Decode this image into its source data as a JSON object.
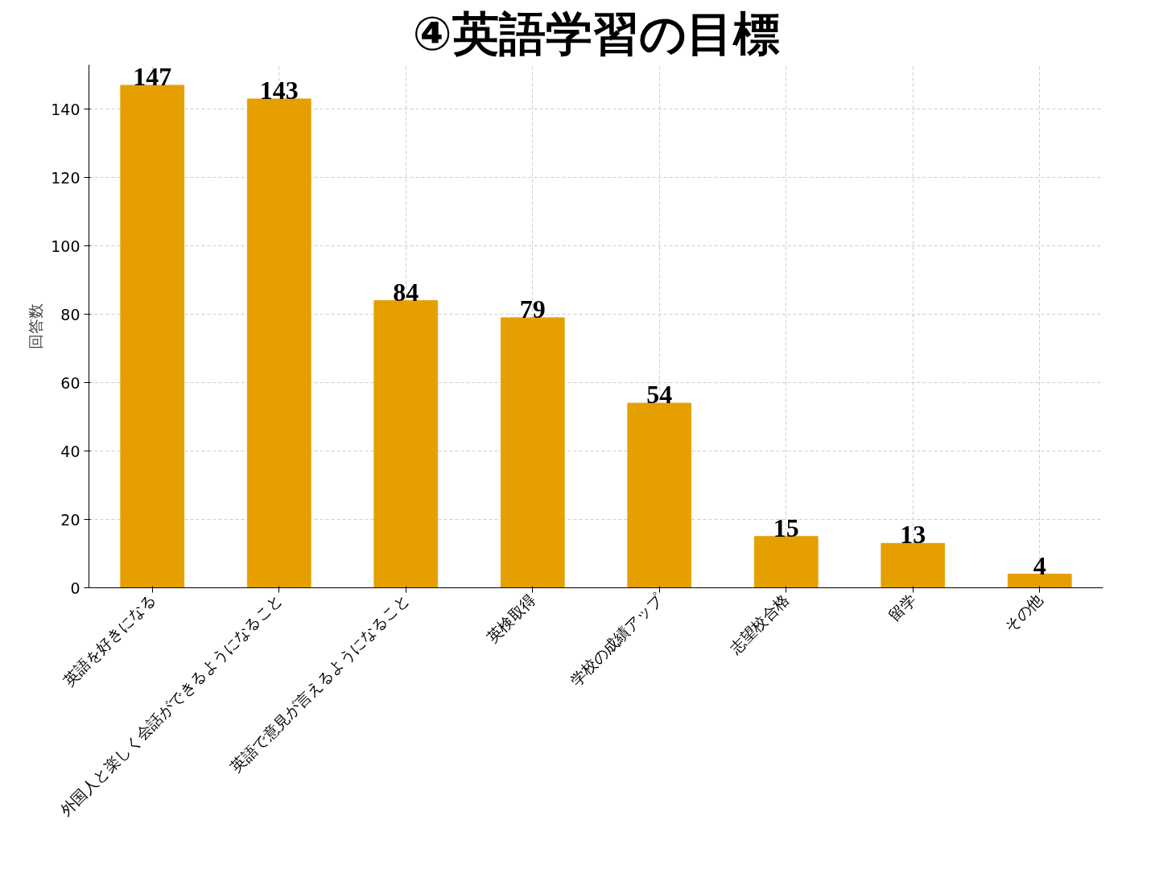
{
  "chart_data": {
    "type": "bar",
    "title": "④英語学習の目標",
    "ylabel": "回答数",
    "categories": [
      "英語を好きになる",
      "外国人と楽しく会話ができるようになること",
      "英語で意見が言えるようになること",
      "英検取得",
      "学校の成績アップ",
      "志望校合格",
      "留学",
      "その他"
    ],
    "values": [
      147,
      143,
      84,
      79,
      54,
      15,
      13,
      4
    ],
    "color": "#e5a000",
    "ylim": [
      0,
      153
    ],
    "yticks": [
      0,
      20,
      40,
      60,
      80,
      100,
      120,
      140
    ],
    "grid": true,
    "data_labels": true
  }
}
